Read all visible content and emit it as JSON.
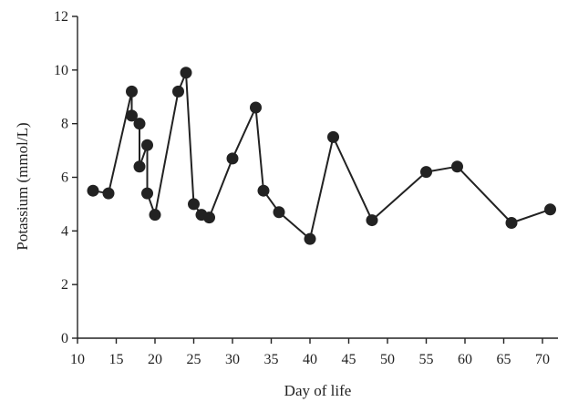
{
  "chart_data": {
    "type": "line",
    "title": "",
    "xlabel": "Day of life",
    "ylabel": "Potassium (mmol/L)",
    "xlim": [
      10,
      72
    ],
    "ylim": [
      0,
      12
    ],
    "xticks": [
      10,
      15,
      20,
      25,
      30,
      35,
      40,
      45,
      50,
      55,
      60,
      65,
      70
    ],
    "xtick_labels": [
      "10",
      "15",
      "20",
      "25",
      "30",
      "35",
      "40",
      "45",
      "50",
      "55",
      "60",
      "65",
      "70"
    ],
    "yticks": [
      0,
      2,
      4,
      6,
      8,
      10,
      12
    ],
    "ytick_labels": [
      "0",
      "2",
      "4",
      "6",
      "8",
      "10",
      "12"
    ],
    "grid": false,
    "legend": "none",
    "series": [
      {
        "color": "#222222",
        "marker": "filled-circle",
        "points": [
          {
            "x": 12,
            "y": 5.5
          },
          {
            "x": 14,
            "y": 5.4
          },
          {
            "x": 17,
            "y": 9.2
          },
          {
            "x": 17,
            "y": 8.3
          },
          {
            "x": 18,
            "y": 8.0
          },
          {
            "x": 18,
            "y": 6.4
          },
          {
            "x": 19,
            "y": 7.2
          },
          {
            "x": 19,
            "y": 5.4
          },
          {
            "x": 20,
            "y": 4.6
          },
          {
            "x": 23,
            "y": 9.2
          },
          {
            "x": 24,
            "y": 9.9
          },
          {
            "x": 25,
            "y": 5.0
          },
          {
            "x": 26,
            "y": 4.6
          },
          {
            "x": 27,
            "y": 4.5
          },
          {
            "x": 30,
            "y": 6.7
          },
          {
            "x": 33,
            "y": 8.6
          },
          {
            "x": 34,
            "y": 5.5
          },
          {
            "x": 36,
            "y": 4.7
          },
          {
            "x": 40,
            "y": 3.7
          },
          {
            "x": 43,
            "y": 7.5
          },
          {
            "x": 48,
            "y": 4.4
          },
          {
            "x": 55,
            "y": 6.2
          },
          {
            "x": 59,
            "y": 6.4
          },
          {
            "x": 66,
            "y": 4.3
          },
          {
            "x": 71,
            "y": 4.8
          }
        ]
      }
    ]
  }
}
